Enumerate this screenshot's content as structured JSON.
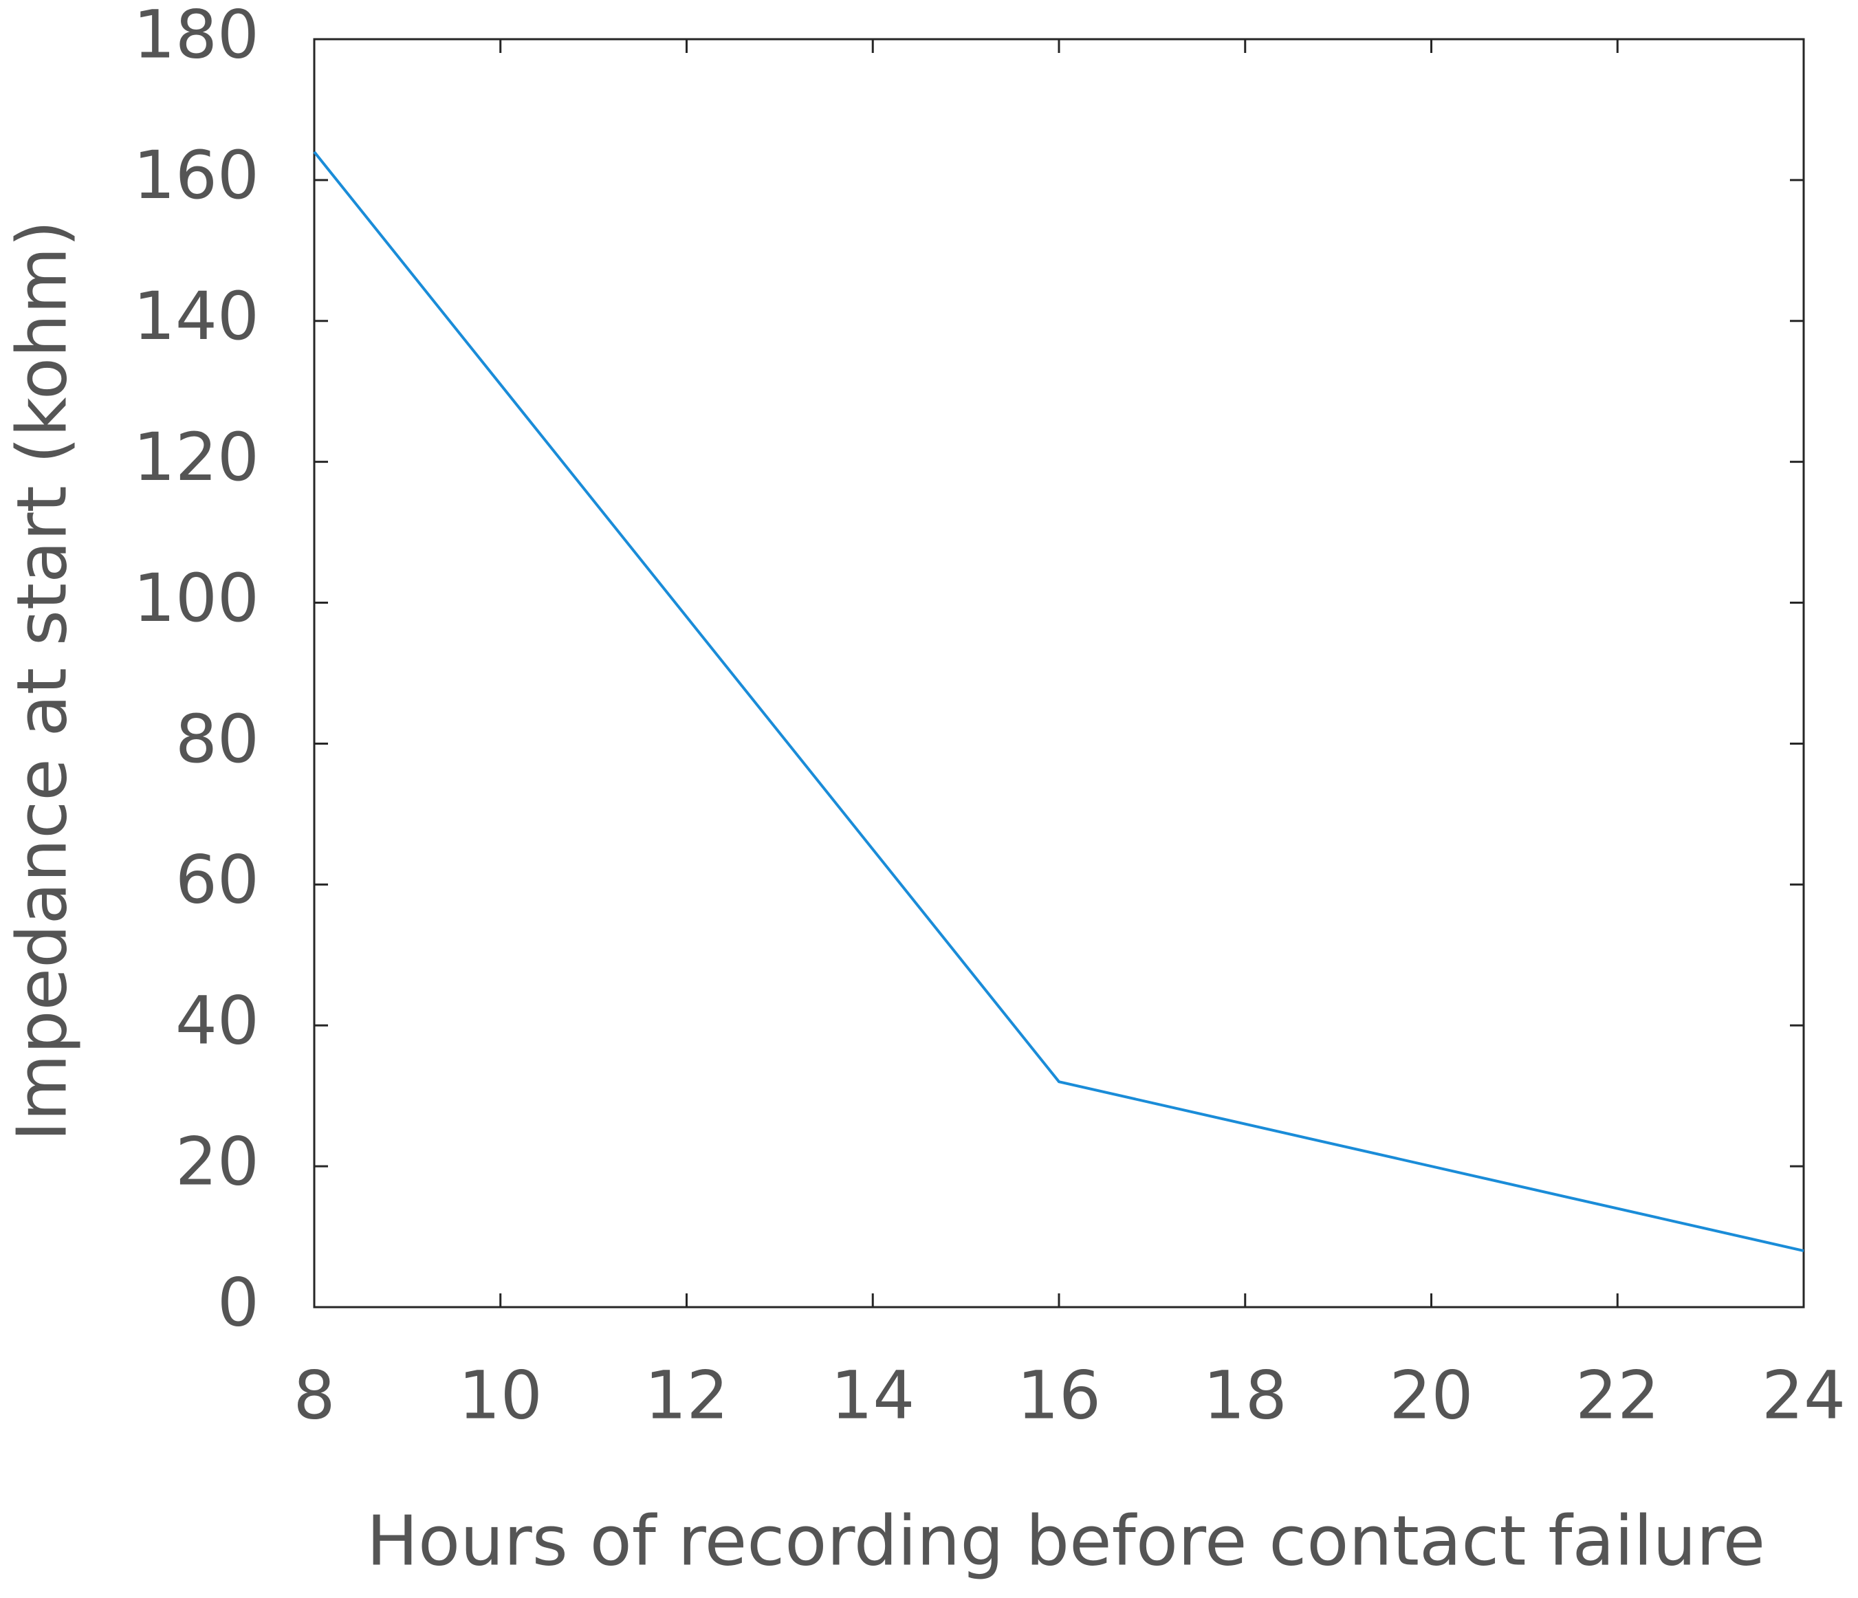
{
  "chart_data": {
    "type": "line",
    "x_label": "Hours of recording before contact failure",
    "y_label": "Impedance at start (kohm)",
    "series": [
      {
        "color": "#1a8cd8",
        "x": [
          8,
          16,
          24
        ],
        "values": [
          164,
          32,
          8
        ]
      }
    ],
    "xlim": [
      8,
      24
    ],
    "xticks": [
      8,
      10,
      12,
      14,
      16,
      18,
      20,
      22,
      24
    ],
    "ylim": [
      0,
      180
    ],
    "yticks": [
      0,
      20,
      40,
      60,
      80,
      100,
      120,
      140,
      160,
      180
    ],
    "grid": false
  }
}
